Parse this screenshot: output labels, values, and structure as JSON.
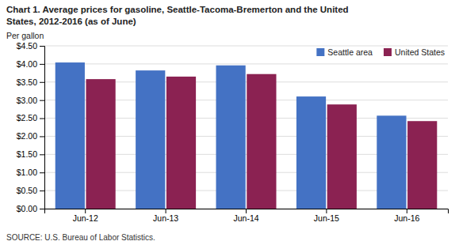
{
  "chart_data": {
    "type": "bar",
    "title": [
      "Chart 1. Average prices for gasoline, Seattle-Tacoma-Bremerton and the United",
      "States, 2012-2016  (as of June)"
    ],
    "ylabel": "Per gallon",
    "source": "SOURCE: U.S. Bureau of Labor Statistics.",
    "categories": [
      "Jun-12",
      "Jun-13",
      "Jun-14",
      "Jun-15",
      "Jun-16"
    ],
    "series": [
      {
        "name": "Seattle area",
        "color": "#4472C4",
        "values": [
          4.04,
          3.82,
          3.96,
          3.1,
          2.57
        ]
      },
      {
        "name": "United States",
        "color": "#8B2252",
        "values": [
          3.58,
          3.65,
          3.72,
          2.88,
          2.42
        ]
      }
    ],
    "ylim": [
      0,
      4.5
    ],
    "yticks": [
      {
        "value": 0.0,
        "label": "$0.00"
      },
      {
        "value": 0.5,
        "label": "$0.50"
      },
      {
        "value": 1.0,
        "label": "$1.00"
      },
      {
        "value": 1.5,
        "label": "$1.50"
      },
      {
        "value": 2.0,
        "label": "$2.00"
      },
      {
        "value": 2.5,
        "label": "$2.50"
      },
      {
        "value": 3.0,
        "label": "$3.00"
      },
      {
        "value": 3.5,
        "label": "$3.50"
      },
      {
        "value": 4.0,
        "label": "$4.00"
      },
      {
        "value": 4.5,
        "label": "$4.50"
      }
    ],
    "grid": true,
    "legend": "top-right"
  }
}
